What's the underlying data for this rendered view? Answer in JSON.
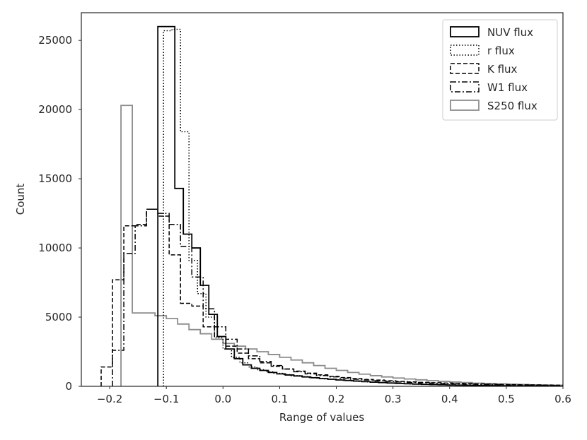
{
  "chart_data": {
    "type": "histogram-step",
    "title": "",
    "xlabel": "Range of values",
    "ylabel": "Count",
    "xlim": [
      -0.25,
      0.6
    ],
    "ylim": [
      0,
      27000
    ],
    "xticks": [
      -0.2,
      -0.1,
      0.0,
      0.1,
      0.2,
      0.3,
      0.4,
      0.5,
      0.6
    ],
    "xtick_labels": [
      "−0.2",
      "−0.1",
      "0.0",
      "0.1",
      "0.2",
      "0.3",
      "0.4",
      "0.5",
      "0.6"
    ],
    "yticks": [
      0,
      5000,
      10000,
      15000,
      20000,
      25000
    ],
    "ytick_labels": [
      "0",
      "5000",
      "10000",
      "15000",
      "20000",
      "25000"
    ],
    "grid": false,
    "legend_position": "top-right",
    "series": [
      {
        "name": "NUV flux",
        "color": "#000000",
        "dash": "solid",
        "width": 1.8,
        "edges": [
          -0.115,
          -0.1,
          -0.085,
          -0.07,
          -0.055,
          -0.04,
          -0.025,
          -0.01,
          0.005,
          0.02,
          0.035,
          0.05,
          0.065,
          0.08,
          0.095,
          0.11,
          0.125,
          0.14,
          0.155,
          0.17,
          0.185,
          0.2,
          0.215,
          0.23,
          0.245,
          0.26,
          0.275,
          0.29,
          0.305,
          0.32,
          0.335,
          0.35,
          0.365,
          0.38,
          0.395,
          0.41,
          0.425,
          0.44,
          0.455,
          0.47,
          0.485,
          0.5,
          0.515,
          0.53,
          0.545,
          0.56,
          0.575,
          0.59,
          0.6
        ],
        "counts": [
          26000,
          26000,
          14300,
          11000,
          10000,
          7300,
          5200,
          3600,
          2700,
          2000,
          1550,
          1300,
          1150,
          1000,
          900,
          820,
          750,
          680,
          620,
          560,
          510,
          460,
          420,
          380,
          340,
          300,
          270,
          240,
          210,
          185,
          160,
          140,
          125,
          110,
          95,
          85,
          75,
          65,
          57,
          50,
          44,
          38,
          33,
          28,
          24,
          20,
          17,
          14
        ]
      },
      {
        "name": "r flux",
        "color": "#000000",
        "dash": "dotted",
        "width": 1.5,
        "edges": [
          -0.105,
          -0.09,
          -0.075,
          -0.06,
          -0.045,
          -0.03,
          -0.015,
          0.0,
          0.015,
          0.03,
          0.045,
          0.06,
          0.075,
          0.09,
          0.105,
          0.12,
          0.135,
          0.15,
          0.165,
          0.18,
          0.195,
          0.21,
          0.225,
          0.24,
          0.255,
          0.27,
          0.285,
          0.3,
          0.315,
          0.33,
          0.345,
          0.36,
          0.375,
          0.39,
          0.405,
          0.42,
          0.435,
          0.45,
          0.465,
          0.48,
          0.495,
          0.51,
          0.525,
          0.54,
          0.555,
          0.57,
          0.585,
          0.6
        ],
        "counts": [
          25700,
          25800,
          18400,
          9100,
          6700,
          5000,
          3500,
          2700,
          2100,
          1700,
          1400,
          1200,
          1050,
          940,
          850,
          770,
          700,
          640,
          580,
          520,
          470,
          430,
          390,
          350,
          310,
          280,
          250,
          220,
          195,
          170,
          150,
          132,
          117,
          103,
          90,
          79,
          69,
          60,
          53,
          46,
          40,
          35,
          30,
          26,
          22,
          18,
          15
        ]
      },
      {
        "name": "K flux",
        "color": "#000000",
        "dash": "dashed",
        "width": 1.5,
        "edges": [
          -0.215,
          -0.195,
          -0.175,
          -0.155,
          -0.135,
          -0.115,
          -0.095,
          -0.075,
          -0.055,
          -0.035,
          -0.015,
          0.005,
          0.025,
          0.045,
          0.065,
          0.085,
          0.105,
          0.125,
          0.145,
          0.165,
          0.185,
          0.205,
          0.225,
          0.245,
          0.265,
          0.285,
          0.305,
          0.325,
          0.345,
          0.365,
          0.385,
          0.405,
          0.425,
          0.445,
          0.465,
          0.485,
          0.505,
          0.525,
          0.545,
          0.565,
          0.585,
          0.6
        ],
        "counts": [
          1400,
          7700,
          11600,
          11700,
          12800,
          12300,
          9500,
          6000,
          5800,
          4300,
          3600,
          2900,
          2400,
          2000,
          1700,
          1450,
          1250,
          1100,
          950,
          830,
          720,
          630,
          560,
          500,
          450,
          400,
          360,
          320,
          290,
          260,
          235,
          210,
          190,
          170,
          152,
          137,
          123,
          111,
          100,
          90,
          82
        ]
      },
      {
        "name": "W1 flux",
        "color": "#000000",
        "dash": "dashdot",
        "width": 1.5,
        "edges": [
          -0.195,
          -0.175,
          -0.155,
          -0.135,
          -0.115,
          -0.095,
          -0.075,
          -0.055,
          -0.035,
          -0.015,
          0.005,
          0.025,
          0.045,
          0.065,
          0.085,
          0.105,
          0.125,
          0.145,
          0.165,
          0.185,
          0.205,
          0.225,
          0.245,
          0.265,
          0.285,
          0.305,
          0.325,
          0.345,
          0.365,
          0.385,
          0.405,
          0.425,
          0.445,
          0.465,
          0.485,
          0.505,
          0.525,
          0.545,
          0.565,
          0.585,
          0.6
        ],
        "counts": [
          2600,
          9600,
          11600,
          12800,
          12500,
          11700,
          10100,
          7900,
          5600,
          4300,
          3400,
          2700,
          2200,
          1800,
          1500,
          1250,
          1050,
          900,
          780,
          680,
          590,
          510,
          450,
          400,
          355,
          315,
          280,
          250,
          222,
          198,
          176,
          156,
          139,
          124,
          110,
          98,
          87,
          77,
          68,
          60
        ]
      },
      {
        "name": "S250 flux",
        "color": "#8c8c8c",
        "dash": "solid",
        "width": 1.8,
        "edges": [
          -0.18,
          -0.16,
          -0.14,
          -0.12,
          -0.1,
          -0.08,
          -0.06,
          -0.04,
          -0.02,
          0.0,
          0.02,
          0.04,
          0.06,
          0.08,
          0.1,
          0.12,
          0.14,
          0.16,
          0.18,
          0.2,
          0.22,
          0.24,
          0.26,
          0.28,
          0.3,
          0.32,
          0.34,
          0.36,
          0.38,
          0.4,
          0.42,
          0.44,
          0.46,
          0.48,
          0.5,
          0.52,
          0.54,
          0.56,
          0.58,
          0.6
        ],
        "counts": [
          20300,
          5300,
          5300,
          5100,
          4900,
          4500,
          4100,
          3800,
          3400,
          3100,
          2900,
          2700,
          2500,
          2300,
          2100,
          1900,
          1700,
          1500,
          1300,
          1150,
          1000,
          880,
          770,
          680,
          600,
          530,
          470,
          410,
          360,
          310,
          270,
          230,
          200,
          175,
          150,
          130,
          110,
          95,
          80
        ]
      }
    ]
  }
}
